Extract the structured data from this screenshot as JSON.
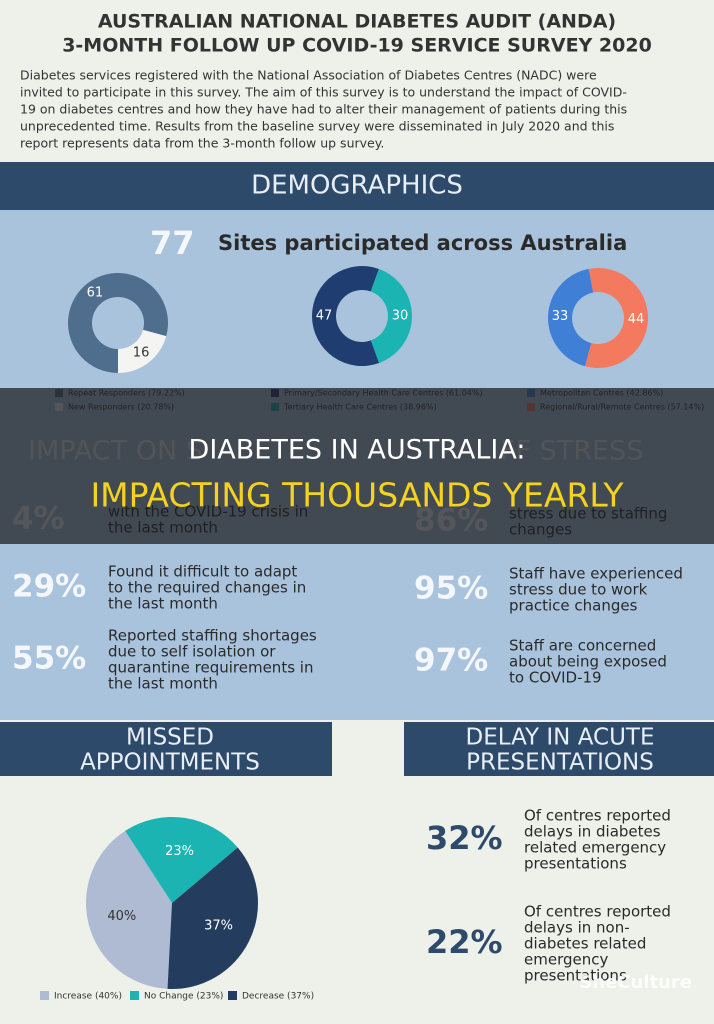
{
  "header": {
    "title_lines": [
      "AUSTRALIAN NATIONAL DIABETES AUDIT (ANDA)",
      "3-MONTH FOLLOW UP COVID-19 SERVICE SURVEY 2020"
    ],
    "intro_lines": [
      "Diabetes services registered with the National Association of Diabetes Centres (NADC) were",
      "invited to participate in this survey.  The aim of this survey is to understand the impact of COVID-",
      "19 on diabetes centres and how they have  had to alter their management of patients during this",
      "unprecedented time. Results from the baseline survey were disseminated in July 2020 and this",
      "report represents data from the 3-month follow up  survey."
    ]
  },
  "demographics": {
    "heading": "DEMOGRAPHICS",
    "sites": 77,
    "sites_text": "Sites participated across Australia",
    "donuts": [
      {
        "values": [
          61,
          16
        ],
        "colors": [
          "#4f6d8c",
          "#f4f4f2"
        ],
        "legend": [
          "Repeat Responders (79.22%)",
          "New Responders (20.78%)"
        ]
      },
      {
        "values": [
          47,
          30
        ],
        "colors": [
          "#1f3d70",
          "#1cb3b3"
        ],
        "legend": [
          "Primary/Secondary Health Care Centres (61.04%)",
          "Tertiary Health Care Centres (38.96%)"
        ]
      },
      {
        "values": [
          33,
          44
        ],
        "colors": [
          "#3f7fd6",
          "#f37a5e"
        ],
        "legend": [
          "Metropolitan Centres (42.86%)",
          "Regional/Rural/Remote Centres (57.14%)"
        ]
      }
    ]
  },
  "overlay": {
    "title": "DIABETES IN AUSTRALIA:",
    "subtitle": "IMPACTING THOUSANDS YEARLY"
  },
  "impact": {
    "heading": "IMPACT ON S",
    "stats": [
      {
        "value": "4%",
        "lines": [
          "with the COVID-19 crisis in",
          "the last month"
        ]
      },
      {
        "value": "29%",
        "lines": [
          "Found it difficult to adapt",
          "to the required changes in",
          "the last month"
        ]
      },
      {
        "value": "55%",
        "lines": [
          "Reported staffing shortages",
          "due to self isolation or",
          "quarantine requirements in",
          "the last month"
        ]
      }
    ]
  },
  "stress": {
    "heading": "FF STRESS",
    "stats": [
      {
        "value": "86%",
        "lines": [
          "stress due to staffing",
          "changes"
        ]
      },
      {
        "value": "95%",
        "lines": [
          "Staff have experienced",
          "stress due to work",
          "practice changes"
        ]
      },
      {
        "value": "97%",
        "lines": [
          "Staff are concerned",
          "about being exposed",
          "to COVID-19"
        ]
      }
    ]
  },
  "missed": {
    "heading_lines": [
      "MISSED",
      "APPOINTMENTS"
    ],
    "values": [
      40,
      23,
      37
    ],
    "value_labels": [
      "40%",
      "23%",
      "37%"
    ],
    "colors": [
      "#aebbd3",
      "#1cb3b3",
      "#243d5e"
    ],
    "legend": [
      "Increase (40%)",
      "No Change (23%)",
      "Decrease (37%)"
    ]
  },
  "delay": {
    "heading_lines": [
      "DELAY IN ACUTE",
      "PRESENTATIONS"
    ],
    "stats": [
      {
        "value": "32%",
        "lines": [
          "Of centres reported",
          "delays in diabetes",
          "related emergency",
          "presentations"
        ]
      },
      {
        "value": "22%",
        "lines": [
          "Of centres reported",
          "delays in non-",
          "diabetes related",
          "emergency",
          "presentations"
        ]
      }
    ]
  },
  "watermark": "SheCulture"
}
